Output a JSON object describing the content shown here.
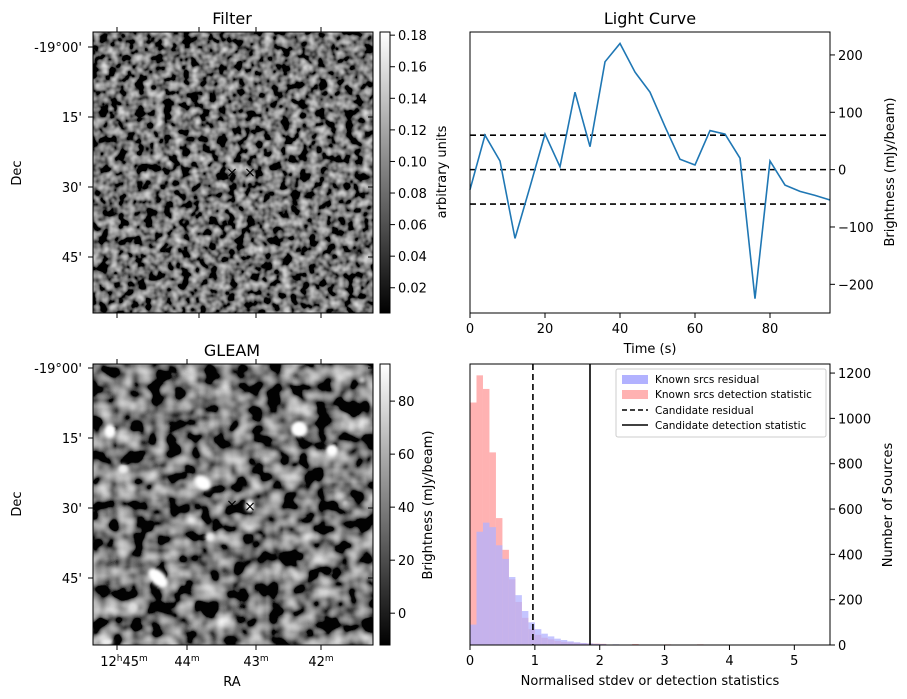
{
  "panels": {
    "filter": {
      "title": "Filter",
      "ylabel": "Dec",
      "yticks": [
        "-19°00'",
        "15'",
        "30'",
        "45'"
      ],
      "colorbar": {
        "label": "arbitrary units",
        "ticks": [
          "0.02",
          "0.04",
          "0.06",
          "0.08",
          "0.10",
          "0.12",
          "0.14",
          "0.16",
          "0.18"
        ],
        "range": [
          0.004,
          0.182
        ]
      }
    },
    "gleam": {
      "title": "GLEAM",
      "ylabel": "Dec",
      "xlabel": "RA",
      "yticks": [
        "-19°00'",
        "15'",
        "30'",
        "45'"
      ],
      "xticks": [
        {
          "main": "12",
          "h": "h",
          "min": "45",
          "m": "m"
        },
        {
          "main": "44",
          "h": "",
          "min": "",
          "m": "m"
        },
        {
          "main": "43",
          "h": "",
          "min": "",
          "m": "m"
        },
        {
          "main": "42",
          "h": "",
          "min": "",
          "m": "m"
        }
      ],
      "colorbar": {
        "label": "Brightness (mJy/beam)",
        "ticks": [
          "0",
          "20",
          "40",
          "60",
          "80"
        ],
        "range": [
          -12,
          94
        ]
      }
    },
    "markers": {
      "candidate_color": "#e8000b",
      "known_color": "#0000ee",
      "symbol": "×"
    }
  },
  "chart_data": [
    {
      "type": "line",
      "title": "Light Curve",
      "xlabel": "Time (s)",
      "ylabel": "Brightness (mJy/beam)",
      "xlim": [
        0,
        96
      ],
      "ylim": [
        -250,
        240
      ],
      "xticks": [
        "0",
        "20",
        "40",
        "60",
        "80"
      ],
      "yticks": [
        "−200",
        "−100",
        "0",
        "100",
        "200"
      ],
      "line_color": "#1f77b4",
      "x": [
        0,
        4,
        8,
        12,
        16,
        20,
        24,
        28,
        32,
        36,
        40,
        44,
        48,
        52,
        56,
        60,
        64,
        68,
        72,
        76,
        80,
        84,
        88,
        92,
        96
      ],
      "y": [
        -35,
        60,
        15,
        -120,
        -30,
        62,
        5,
        135,
        40,
        188,
        220,
        170,
        135,
        75,
        18,
        8,
        68,
        62,
        20,
        -225,
        15,
        -27,
        -38,
        -45,
        -53
      ],
      "hlines": [
        {
          "y": 60,
          "style": "dashed"
        },
        {
          "y": 0,
          "style": "dashed"
        },
        {
          "y": -60,
          "style": "dashed"
        }
      ]
    },
    {
      "type": "bar",
      "xlabel": "Normalised stdev or detection statistics",
      "ylabel": "Number of Sources",
      "xlim": [
        0,
        5.55
      ],
      "ylim": [
        0,
        1240
      ],
      "xticks": [
        "0",
        "1",
        "2",
        "3",
        "4",
        "5"
      ],
      "yticks": [
        "0",
        "200",
        "400",
        "600",
        "800",
        "1000",
        "1200"
      ],
      "bin_width": 0.1,
      "series": [
        {
          "name": "Known srcs residual",
          "color": "#b2b2ff",
          "x": [
            0.0,
            0.1,
            0.2,
            0.3,
            0.4,
            0.5,
            0.6,
            0.7,
            0.8,
            0.9,
            1.0,
            1.1,
            1.2,
            1.3,
            1.4,
            1.5,
            1.6,
            1.7,
            1.8,
            1.9,
            2.0,
            2.2,
            2.4,
            2.6,
            2.8,
            3.0
          ],
          "values": [
            90,
            500,
            540,
            520,
            440,
            380,
            300,
            220,
            150,
            100,
            70,
            50,
            38,
            28,
            22,
            16,
            12,
            9,
            7,
            5,
            4,
            3,
            2,
            2,
            1,
            1
          ]
        },
        {
          "name": "Known srcs detection statistic",
          "color": "#ffb2b2",
          "x": [
            0.0,
            0.1,
            0.2,
            0.3,
            0.4,
            0.5,
            0.6,
            0.7,
            0.8,
            0.9,
            1.0,
            1.1,
            1.2,
            1.3,
            1.4,
            1.5,
            1.6,
            1.7,
            1.8,
            1.9,
            2.0,
            2.5,
            3.0,
            3.5,
            4.0,
            4.5,
            5.0
          ],
          "values": [
            1070,
            1190,
            1130,
            850,
            560,
            420,
            290,
            190,
            120,
            70,
            45,
            32,
            25,
            18,
            14,
            12,
            10,
            8,
            7,
            6,
            5,
            4,
            3,
            3,
            2,
            2,
            1
          ]
        }
      ],
      "vlines": [
        {
          "name": "Candidate residual",
          "x": 0.97,
          "style": "dashed"
        },
        {
          "name": "Candidate detection statistic",
          "x": 1.85,
          "style": "solid"
        }
      ],
      "legend_position": "upper right"
    }
  ]
}
